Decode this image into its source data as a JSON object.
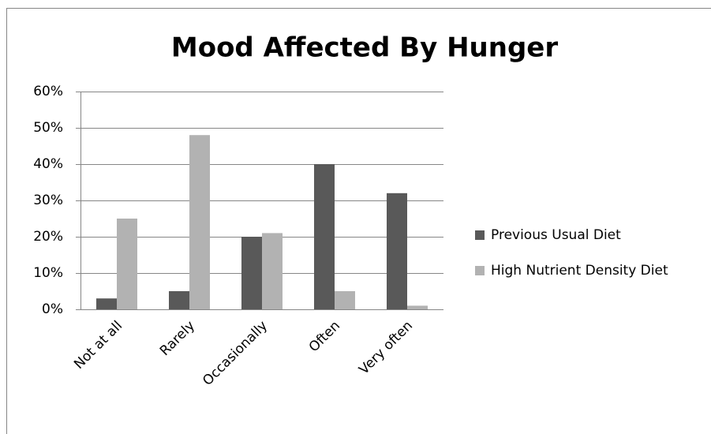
{
  "chart_data": {
    "type": "bar",
    "title": "Mood Affected By Hunger",
    "categories": [
      "Not at all",
      "Rarely",
      "Occasionally",
      "Often",
      "Very often"
    ],
    "series": [
      {
        "name": "Previous Usual Diet",
        "color": "#595959",
        "values": [
          3,
          5,
          20,
          40,
          32
        ]
      },
      {
        "name": "High Nutrient Density Diet",
        "color": "#b2b2b2",
        "values": [
          25,
          48,
          21,
          5,
          1
        ]
      }
    ],
    "ylim": [
      0,
      60
    ],
    "yticks": [
      {
        "value": 0,
        "label": "0%"
      },
      {
        "value": 10,
        "label": "10%"
      },
      {
        "value": 20,
        "label": "20%"
      },
      {
        "value": 30,
        "label": "30%"
      },
      {
        "value": 40,
        "label": "40%"
      },
      {
        "value": 50,
        "label": "50%"
      },
      {
        "value": 60,
        "label": "60%"
      }
    ],
    "grid": true,
    "legend": "right"
  }
}
